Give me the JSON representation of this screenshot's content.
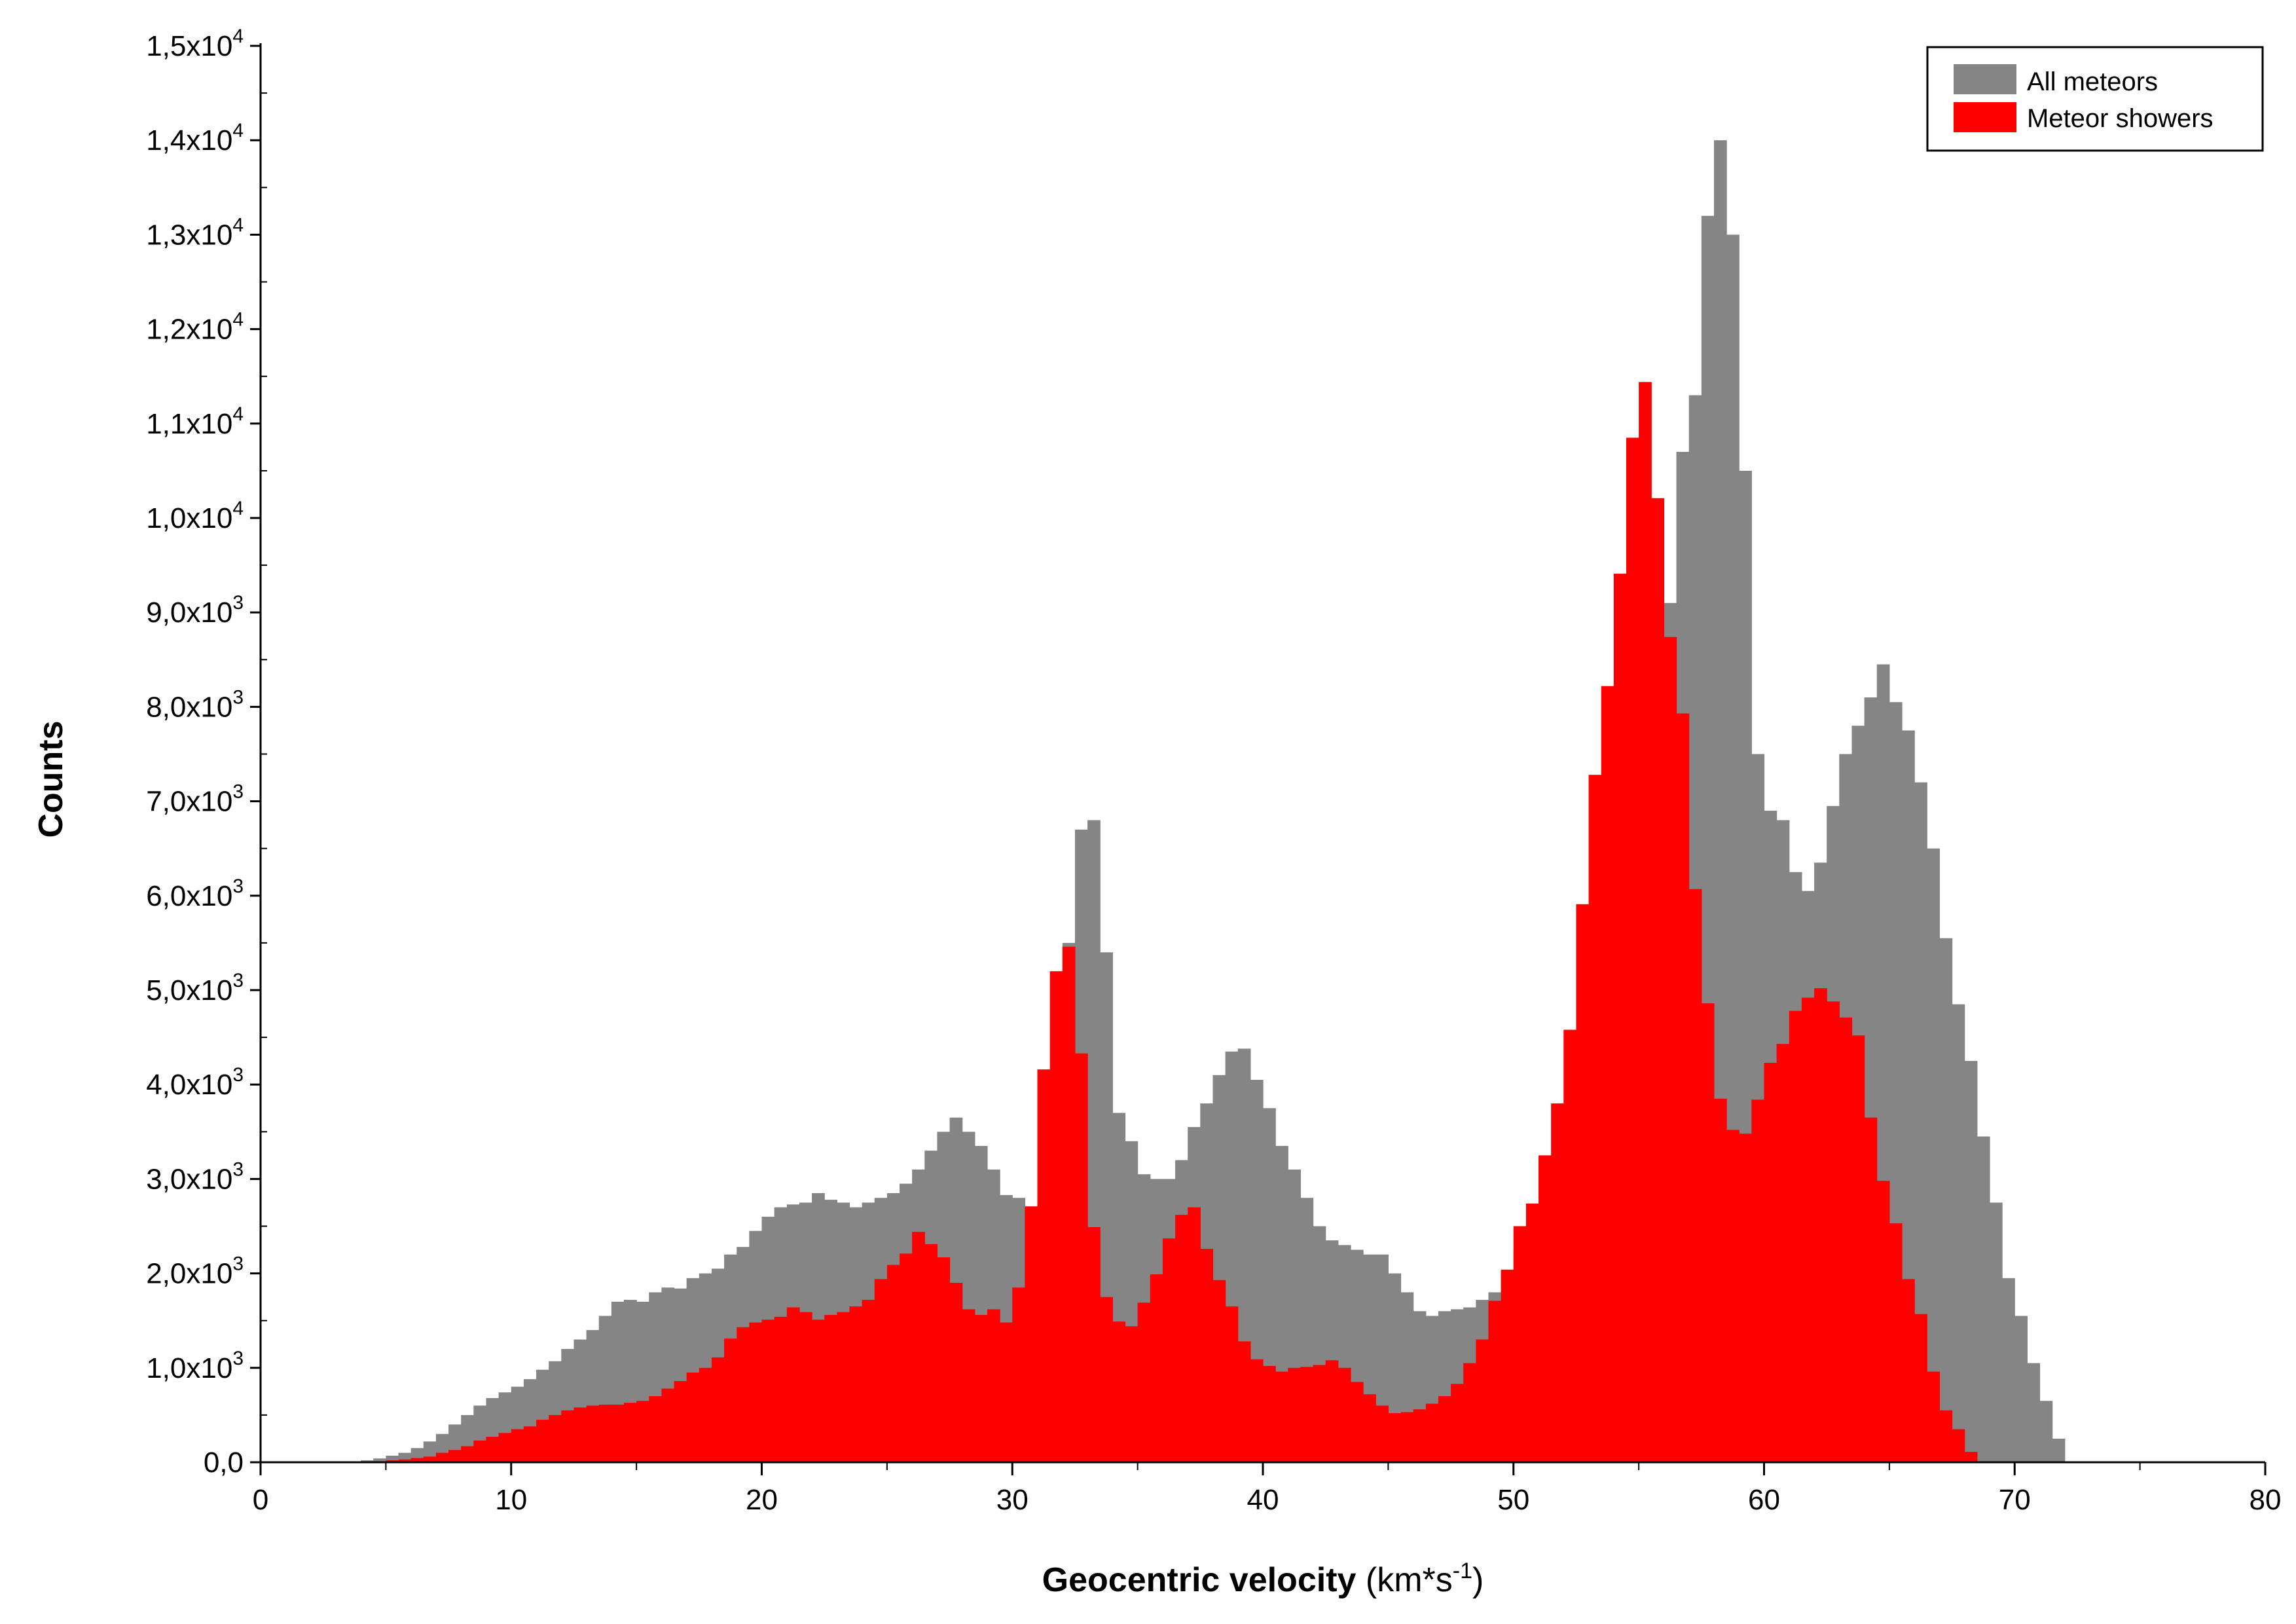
{
  "chart_data": {
    "type": "bar",
    "x_start": 0,
    "bin_width": 0.5,
    "xlim": [
      0,
      80
    ],
    "ylim": [
      0,
      15000
    ],
    "x_ticks": [
      {
        "value": 0,
        "label": "0"
      },
      {
        "value": 10,
        "label": "10"
      },
      {
        "value": 20,
        "label": "20"
      },
      {
        "value": 30,
        "label": "30"
      },
      {
        "value": 40,
        "label": "40"
      },
      {
        "value": 50,
        "label": "50"
      },
      {
        "value": 60,
        "label": "60"
      },
      {
        "value": 70,
        "label": "70"
      },
      {
        "value": 80,
        "label": "80"
      }
    ],
    "y_ticks": [
      {
        "value": 0,
        "mantissa": "0,0",
        "exp": ""
      },
      {
        "value": 1000,
        "mantissa": "1,0x10",
        "exp": "3"
      },
      {
        "value": 2000,
        "mantissa": "2,0x10",
        "exp": "3"
      },
      {
        "value": 3000,
        "mantissa": "3,0x10",
        "exp": "3"
      },
      {
        "value": 4000,
        "mantissa": "4,0x10",
        "exp": "3"
      },
      {
        "value": 5000,
        "mantissa": "5,0x10",
        "exp": "3"
      },
      {
        "value": 6000,
        "mantissa": "6,0x10",
        "exp": "3"
      },
      {
        "value": 7000,
        "mantissa": "7,0x10",
        "exp": "3"
      },
      {
        "value": 8000,
        "mantissa": "8,0x10",
        "exp": "3"
      },
      {
        "value": 9000,
        "mantissa": "9,0x10",
        "exp": "3"
      },
      {
        "value": 10000,
        "mantissa": "1,0x10",
        "exp": "4"
      },
      {
        "value": 11000,
        "mantissa": "1,1x10",
        "exp": "4"
      },
      {
        "value": 12000,
        "mantissa": "1,2x10",
        "exp": "4"
      },
      {
        "value": 13000,
        "mantissa": "1,3x10",
        "exp": "4"
      },
      {
        "value": 14000,
        "mantissa": "1,4x10",
        "exp": "4"
      },
      {
        "value": 15000,
        "mantissa": "1,5x10",
        "exp": "4"
      }
    ],
    "xlabel": {
      "bold": "Geocentric velocity",
      "unit_prefix": " (km*s",
      "unit_exp": "-1",
      "unit_suffix": ")"
    },
    "ylabel": "Counts",
    "legend_position": "top-right",
    "series": [
      {
        "name": "All meteors",
        "color": "#858585",
        "values": [
          0,
          0,
          0,
          0,
          0,
          0,
          0,
          10,
          20,
          40,
          70,
          100,
          150,
          220,
          300,
          400,
          500,
          600,
          680,
          740,
          800,
          880,
          980,
          1070,
          1200,
          1300,
          1400,
          1550,
          1700,
          1720,
          1700,
          1800,
          1850,
          1840,
          1950,
          2000,
          2050,
          2200,
          2280,
          2450,
          2600,
          2700,
          2730,
          2750,
          2850,
          2780,
          2750,
          2700,
          2750,
          2800,
          2850,
          2950,
          3100,
          3300,
          3500,
          3650,
          3500,
          3350,
          3100,
          2830,
          2800,
          2700,
          3050,
          3320,
          5500,
          6700,
          6800,
          5400,
          3700,
          3400,
          3050,
          3000,
          3000,
          3200,
          3550,
          3800,
          4100,
          4350,
          4380,
          4050,
          3750,
          3350,
          3100,
          2800,
          2500,
          2350,
          2300,
          2250,
          2200,
          2200,
          2000,
          1800,
          1600,
          1550,
          1600,
          1620,
          1640,
          1720,
          1800,
          2000,
          2250,
          2450,
          2750,
          3050,
          3500,
          4000,
          4500,
          5250,
          6100,
          6800,
          7400,
          8000,
          9100,
          10700,
          11300,
          13200,
          14000,
          13000,
          10500,
          7500,
          6900,
          6800,
          6250,
          6050,
          6350,
          6950,
          7500,
          7800,
          8100,
          8450,
          8050,
          7750,
          7200,
          6500,
          5550,
          4850,
          4250,
          3450,
          2750,
          1950,
          1550,
          1050,
          650,
          250,
          0,
          0,
          0,
          0,
          0,
          0,
          0,
          0,
          0,
          0,
          0,
          0,
          0,
          0
        ]
      },
      {
        "name": "Meteor showers",
        "color": "#ff0000",
        "values": [
          0,
          0,
          0,
          0,
          0,
          0,
          0,
          0,
          5,
          10,
          20,
          30,
          45,
          60,
          100,
          130,
          170,
          230,
          270,
          310,
          350,
          380,
          450,
          500,
          550,
          580,
          600,
          610,
          610,
          630,
          650,
          700,
          780,
          860,
          950,
          1000,
          1110,
          1310,
          1430,
          1480,
          1510,
          1540,
          1640,
          1590,
          1510,
          1560,
          1590,
          1650,
          1720,
          1940,
          2090,
          2210,
          2440,
          2310,
          2170,
          1900,
          1620,
          1560,
          1620,
          1480,
          1850,
          2710,
          4160,
          5200,
          5460,
          4330,
          2490,
          1750,
          1490,
          1440,
          1690,
          1990,
          2370,
          2620,
          2700,
          2260,
          1930,
          1650,
          1280,
          1090,
          1020,
          960,
          1000,
          1010,
          1030,
          1080,
          1000,
          850,
          720,
          600,
          520,
          530,
          560,
          620,
          700,
          830,
          1050,
          1300,
          1710,
          2040,
          2500,
          2740,
          3250,
          3800,
          4580,
          5910,
          7280,
          8220,
          9410,
          10850,
          11440,
          10210,
          8740,
          7930,
          6070,
          4860,
          3850,
          3520,
          3480,
          3840,
          4230,
          4430,
          4780,
          4920,
          5020,
          4880,
          4710,
          4520,
          3650,
          2980,
          2530,
          1940,
          1570,
          960,
          550,
          350,
          110,
          0,
          0,
          0,
          0,
          0,
          0,
          0,
          0,
          0,
          0,
          0,
          0,
          0,
          0
        ]
      }
    ]
  },
  "colors": {
    "all_meteors": "#858585",
    "meteor_showers": "#ff0000",
    "axis": "#000000",
    "background": "#ffffff"
  }
}
